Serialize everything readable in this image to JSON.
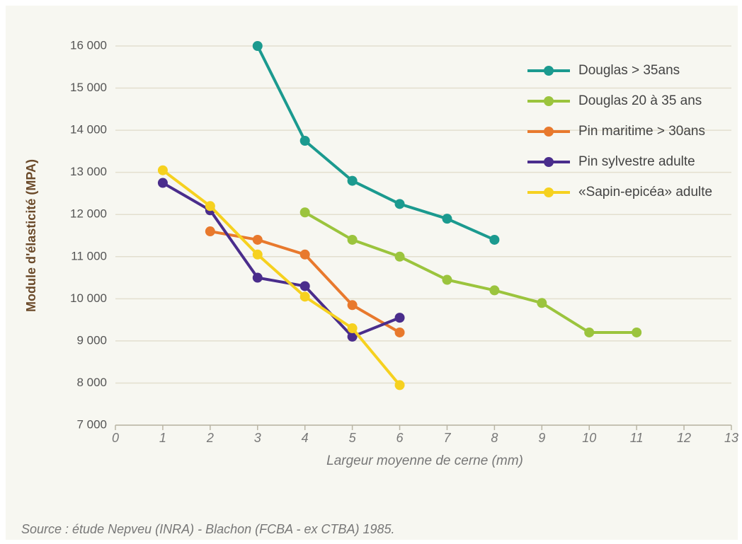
{
  "chart_data": {
    "type": "line",
    "ylabel": "Module d'élasticité (MPA)",
    "xlabel": "Largeur moyenne de cerne (mm)",
    "source": "Source : étude Nepveu (INRA) - Blachon (FCBA - ex CTBA) 1985.",
    "xlim": [
      0,
      13
    ],
    "xticks": [
      0,
      1,
      2,
      3,
      4,
      5,
      6,
      7,
      8,
      9,
      10,
      11,
      12,
      13
    ],
    "ylim": [
      7000,
      16000
    ],
    "yticks": [
      {
        "value": 7000,
        "label": "7 000"
      },
      {
        "value": 8000,
        "label": "8 000"
      },
      {
        "value": 9000,
        "label": "9 000"
      },
      {
        "value": 10000,
        "label": "10 000"
      },
      {
        "value": 11000,
        "label": "11 000"
      },
      {
        "value": 12000,
        "label": "12 000"
      },
      {
        "value": 13000,
        "label": "13 000"
      },
      {
        "value": 14000,
        "label": "14 000"
      },
      {
        "value": 15000,
        "label": "15 000"
      },
      {
        "value": 16000,
        "label": "16 000"
      }
    ],
    "grid": true,
    "legend": "upper right",
    "series": [
      {
        "name": "Douglas > 35ans",
        "color": "#1b9a8f",
        "x": [
          3,
          4,
          5,
          6,
          7,
          8
        ],
        "values": [
          16000,
          13750,
          12800,
          12250,
          11900,
          11400
        ]
      },
      {
        "name": "Douglas 20 à 35 ans",
        "color": "#9bc43d",
        "x": [
          4,
          5,
          6,
          7,
          8,
          9,
          10,
          11
        ],
        "values": [
          12050,
          11400,
          11000,
          10450,
          10200,
          9900,
          9200,
          9200
        ]
      },
      {
        "name": "Pin maritime > 30ans",
        "color": "#e8792d",
        "x": [
          2,
          3,
          4,
          5,
          6
        ],
        "values": [
          11600,
          11400,
          11050,
          9850,
          9200
        ]
      },
      {
        "name": "Pin sylvestre adulte",
        "color": "#4a2d8c",
        "x": [
          1,
          2,
          3,
          4,
          5,
          6
        ],
        "values": [
          12750,
          12100,
          10500,
          10300,
          9100,
          9550
        ]
      },
      {
        "name": "«Sapin-epicéa» adulte",
        "color": "#f6d11f",
        "x": [
          1,
          2,
          3,
          4,
          5,
          6
        ],
        "values": [
          13050,
          12200,
          11050,
          10050,
          9300,
          7950
        ]
      }
    ]
  }
}
